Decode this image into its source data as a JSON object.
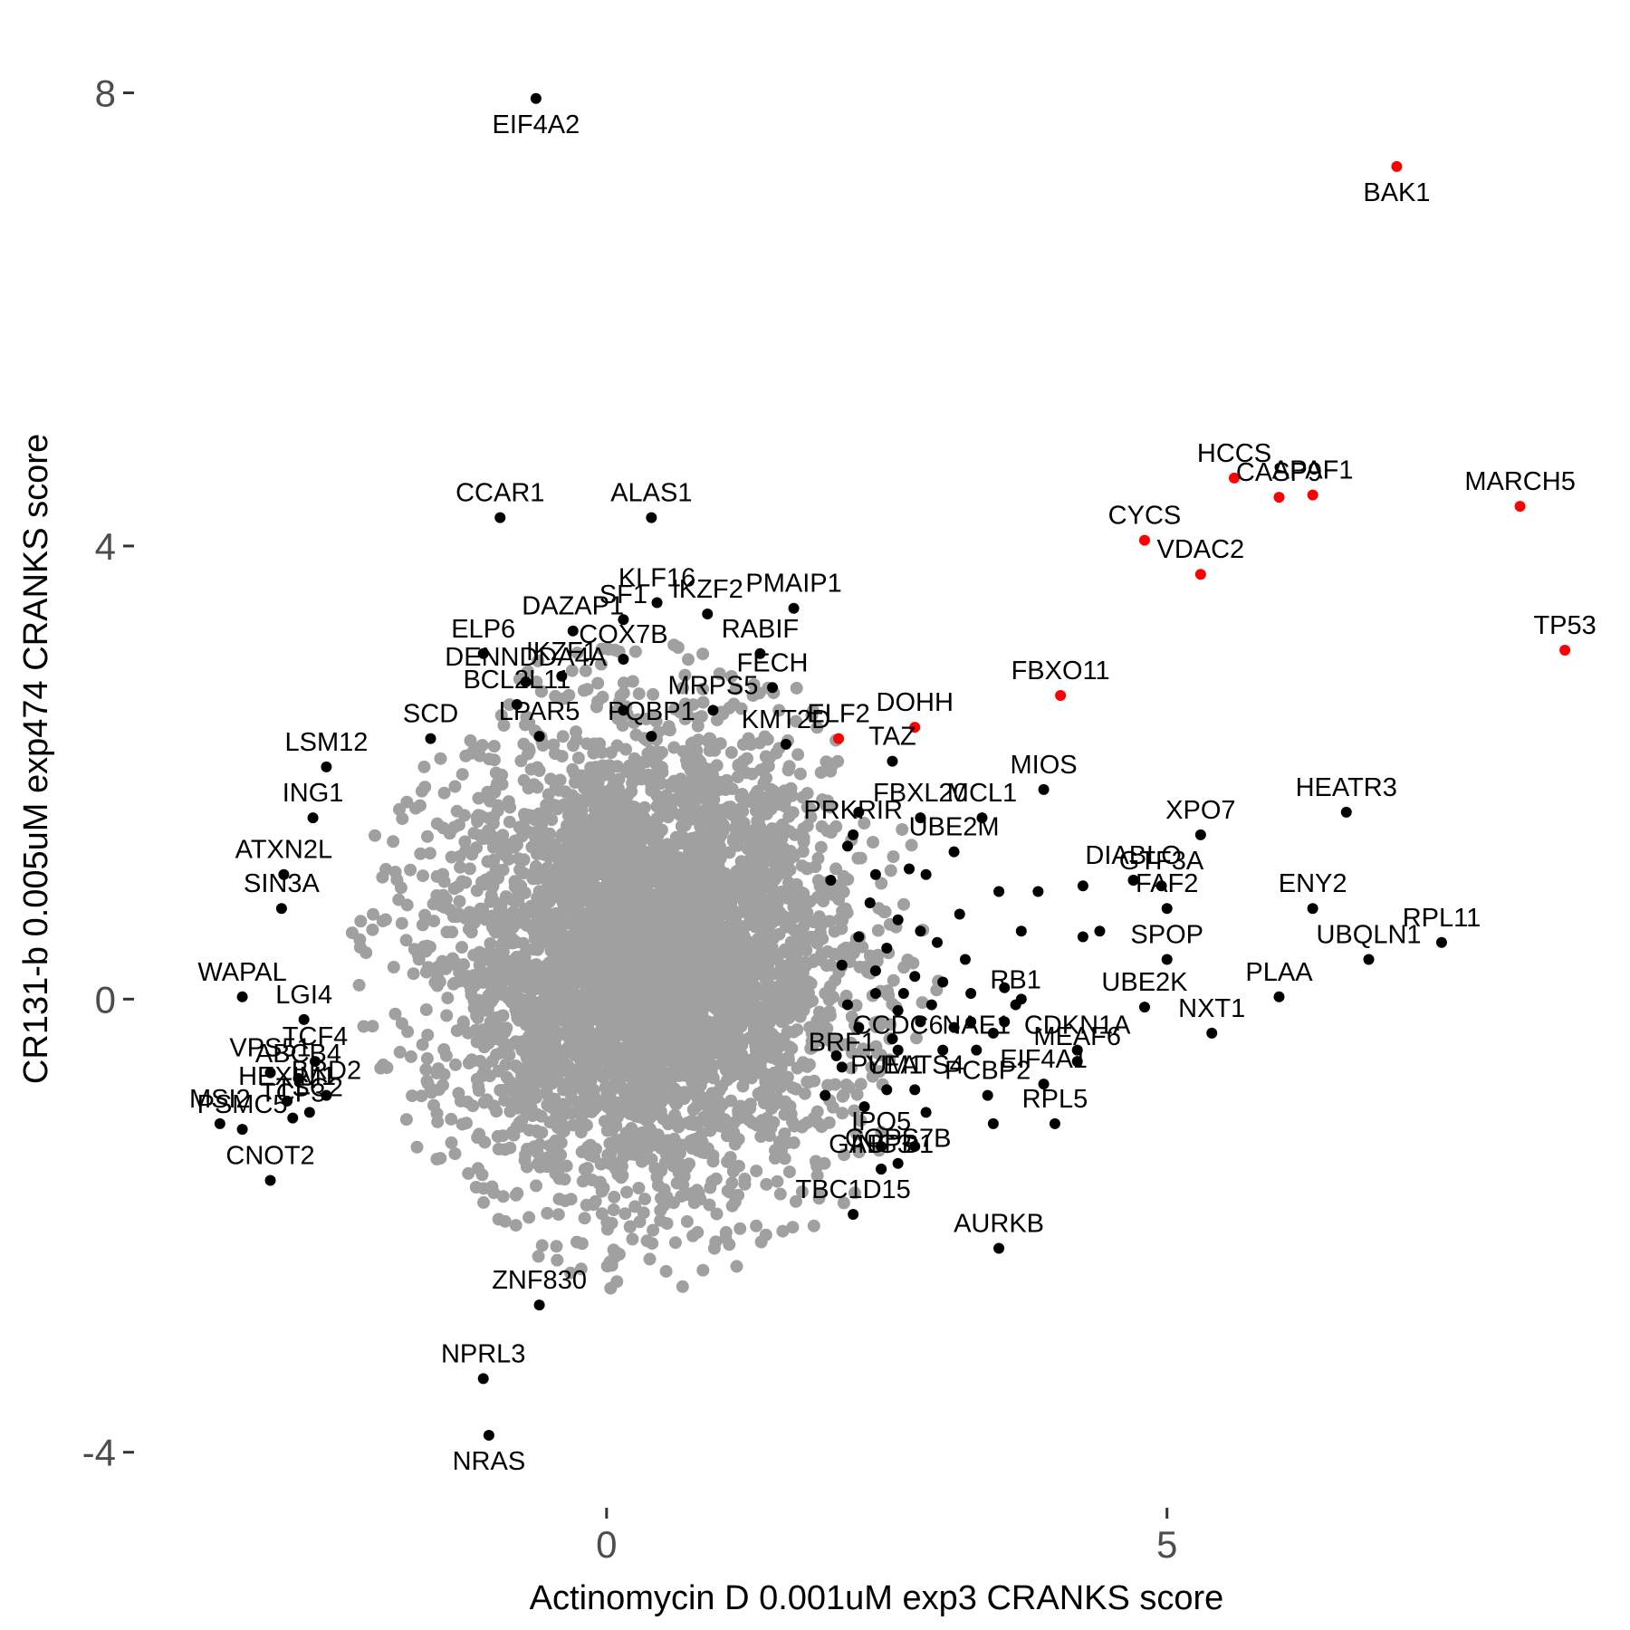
{
  "chart_data": {
    "type": "scatter",
    "title": "",
    "xlabel": "Actinomycin D 0.001uM exp3 CRANKS score",
    "ylabel": "CR131-b 0.005uM exp474 CRANKS score",
    "xlim": [
      -4.2,
      9.05
    ],
    "ylim": [
      -4.45,
      8.3
    ],
    "x_ticks": [
      0,
      5
    ],
    "y_ticks": [
      -4,
      0,
      4,
      8
    ],
    "grid": false,
    "legend": "none",
    "colors": {
      "background": "#ffffff",
      "bulk": "#a0a0a0",
      "highlight": "#ff0000",
      "labeled": "#000000",
      "text": "#000000",
      "tick_text": "#4d4d4d"
    },
    "bulk_cloud": {
      "center_x": 0.35,
      "center_y": 0.35,
      "sd_x": 0.85,
      "sd_y": 0.95,
      "count": 4500
    },
    "highlighted": [
      {
        "label": "BAK1",
        "x": 7.05,
        "y": 7.35
      },
      {
        "label": "HCCS",
        "x": 5.6,
        "y": 4.6
      },
      {
        "label": "APAF1",
        "x": 6.3,
        "y": 4.45
      },
      {
        "label": "CASP9",
        "x": 6.0,
        "y": 4.43
      },
      {
        "label": "CYCS",
        "x": 4.8,
        "y": 4.05
      },
      {
        "label": "MARCH5",
        "x": 8.15,
        "y": 4.35
      },
      {
        "label": "VDAC2",
        "x": 5.3,
        "y": 3.75
      },
      {
        "label": "TP53",
        "x": 8.55,
        "y": 3.08
      },
      {
        "label": "FBXO11",
        "x": 4.05,
        "y": 2.68
      },
      {
        "label": "DOHH",
        "x": 2.75,
        "y": 2.4
      },
      {
        "label": "ELF2",
        "x": 2.07,
        "y": 2.3
      }
    ],
    "labeled": [
      {
        "label": "EIF4A2",
        "x": -0.63,
        "y": 7.95
      },
      {
        "label": "CCAR1",
        "x": -0.95,
        "y": 4.25
      },
      {
        "label": "ALAS1",
        "x": 0.4,
        "y": 4.25
      },
      {
        "label": "DAZAP1",
        "x": -0.3,
        "y": 3.25
      },
      {
        "label": "KLF16",
        "x": 0.45,
        "y": 3.5
      },
      {
        "label": "SF1",
        "x": 0.15,
        "y": 3.35
      },
      {
        "label": "IKZF2",
        "x": 0.9,
        "y": 3.4
      },
      {
        "label": "PMAIP1",
        "x": 1.67,
        "y": 3.45
      },
      {
        "label": "ELP6",
        "x": -1.1,
        "y": 3.05
      },
      {
        "label": "DENNDDA4A",
        "x": -0.72,
        "y": 2.8
      },
      {
        "label": "COX7B",
        "x": 0.15,
        "y": 3.0
      },
      {
        "label": "RABIF",
        "x": 1.37,
        "y": 3.05
      },
      {
        "label": "BCL2L11",
        "x": -0.8,
        "y": 2.6
      },
      {
        "label": "IKZF1",
        "x": -0.4,
        "y": 2.85
      },
      {
        "label": "FECH",
        "x": 1.48,
        "y": 2.75
      },
      {
        "label": "SCD",
        "x": -1.57,
        "y": 2.3
      },
      {
        "label": "MRPS5",
        "x": 0.95,
        "y": 2.55
      },
      {
        "label": "LPAR5",
        "x": -0.6,
        "y": 2.32
      },
      {
        "label": "LSM12",
        "x": -2.5,
        "y": 2.05
      },
      {
        "label": "PQBP1",
        "x": 0.4,
        "y": 2.32
      },
      {
        "label": "TAZ",
        "x": 2.55,
        "y": 2.1
      },
      {
        "label": "ING1",
        "x": -2.62,
        "y": 1.6
      },
      {
        "label": "KMT2D",
        "x": 1.6,
        "y": 2.25
      },
      {
        "label": "FBXL20",
        "x": 2.8,
        "y": 1.6
      },
      {
        "label": "MIOS",
        "x": 3.9,
        "y": 1.85
      },
      {
        "label": "MCL1",
        "x": 3.35,
        "y": 1.6
      },
      {
        "label": "XPO7",
        "x": 5.3,
        "y": 1.45
      },
      {
        "label": "HEATR3",
        "x": 6.6,
        "y": 1.65
      },
      {
        "label": "ATXN2L",
        "x": -2.88,
        "y": 1.1
      },
      {
        "label": "PRKRIR",
        "x": 2.2,
        "y": 1.45
      },
      {
        "label": "UBE2M",
        "x": 3.1,
        "y": 1.3
      },
      {
        "label": "GTF3A",
        "x": 4.95,
        "y": 1.0
      },
      {
        "label": "DIABLO",
        "x": 4.7,
        "y": 1.05
      },
      {
        "label": "FAF2",
        "x": 5.0,
        "y": 0.8
      },
      {
        "label": "ENY2",
        "x": 6.3,
        "y": 0.8
      },
      {
        "label": "SIN3A",
        "x": -2.9,
        "y": 0.8
      },
      {
        "label": "RPL11",
        "x": 7.45,
        "y": 0.5
      },
      {
        "label": "SPOP",
        "x": 5.0,
        "y": 0.35
      },
      {
        "label": "UBQLN1",
        "x": 6.8,
        "y": 0.35
      },
      {
        "label": "WAPAL",
        "x": -3.25,
        "y": 0.02
      },
      {
        "label": "UBE2K",
        "x": 4.8,
        "y": -0.07
      },
      {
        "label": "PLAA",
        "x": 6.0,
        "y": 0.02
      },
      {
        "label": "LGI4",
        "x": -2.7,
        "y": -0.18
      },
      {
        "label": "RB1",
        "x": 3.65,
        "y": -0.05
      },
      {
        "label": "NXT1",
        "x": 5.4,
        "y": -0.3
      },
      {
        "label": "TCF4",
        "x": -2.6,
        "y": -0.55
      },
      {
        "label": "VPS51",
        "x": -3.0,
        "y": -0.65
      },
      {
        "label": "ABCB4",
        "x": -2.75,
        "y": -0.7
      },
      {
        "label": "MEAF6",
        "x": 4.2,
        "y": -0.55
      },
      {
        "label": "NAE1",
        "x": 3.3,
        "y": -0.45
      },
      {
        "label": "CCDC6",
        "x": 2.6,
        "y": -0.45
      },
      {
        "label": "BRF1",
        "x": 2.1,
        "y": -0.6
      },
      {
        "label": "MSI2",
        "x": -3.45,
        "y": -1.1
      },
      {
        "label": "BRD2",
        "x": -2.5,
        "y": -0.85
      },
      {
        "label": "HEXIM1",
        "x": -2.85,
        "y": -0.9
      },
      {
        "label": "PCBP2",
        "x": 3.4,
        "y": -0.85
      },
      {
        "label": "EIF4A1",
        "x": 3.9,
        "y": -0.75
      },
      {
        "label": "CDKN1A",
        "x": 4.2,
        "y": -0.45
      },
      {
        "label": "PUM1",
        "x": 2.5,
        "y": -0.8
      },
      {
        "label": "TSC2",
        "x": -2.65,
        "y": -1.0
      },
      {
        "label": "TCF3",
        "x": -2.8,
        "y": -1.05
      },
      {
        "label": "RPL5",
        "x": 4.0,
        "y": -1.1
      },
      {
        "label": "IPO5",
        "x": 2.45,
        "y": -1.3
      },
      {
        "label": "COPS7B",
        "x": 2.6,
        "y": -1.45
      },
      {
        "label": "YEATS4",
        "x": 2.75,
        "y": -0.8
      },
      {
        "label": "PSMC5",
        "x": -3.25,
        "y": -1.15
      },
      {
        "label": "CNOT2",
        "x": -3.0,
        "y": -1.6
      },
      {
        "label": "ING3",
        "x": 2.45,
        "y": -1.5
      },
      {
        "label": "GABPB1",
        "x": 2.45,
        "y": -1.5
      },
      {
        "label": "TBC1D15",
        "x": 2.2,
        "y": -1.9
      },
      {
        "label": "AURKB",
        "x": 3.5,
        "y": -2.2
      },
      {
        "label": "ZNF830",
        "x": -0.6,
        "y": -2.7
      },
      {
        "label": "NPRL3",
        "x": -1.1,
        "y": -3.35
      },
      {
        "label": "NRAS",
        "x": -1.05,
        "y": -3.85
      }
    ],
    "unlabeled_black": [
      {
        "x": 0.15,
        "y": 2.55
      },
      {
        "x": 2.25,
        "y": 1.65
      },
      {
        "x": 2.15,
        "y": 1.35
      },
      {
        "x": 2.4,
        "y": 1.1
      },
      {
        "x": 2.7,
        "y": 1.15
      },
      {
        "x": 2.85,
        "y": 1.1
      },
      {
        "x": 3.5,
        "y": 0.95
      },
      {
        "x": 3.85,
        "y": 0.95
      },
      {
        "x": 4.25,
        "y": 1.0
      },
      {
        "x": 4.7,
        "y": 1.05
      },
      {
        "x": 2.0,
        "y": 1.05
      },
      {
        "x": 2.35,
        "y": 0.85
      },
      {
        "x": 2.6,
        "y": 0.7
      },
      {
        "x": 2.8,
        "y": 0.6
      },
      {
        "x": 3.15,
        "y": 0.75
      },
      {
        "x": 3.7,
        "y": 0.6
      },
      {
        "x": 2.25,
        "y": 0.55
      },
      {
        "x": 2.5,
        "y": 0.45
      },
      {
        "x": 2.95,
        "y": 0.5
      },
      {
        "x": 3.2,
        "y": 0.35
      },
      {
        "x": 4.25,
        "y": 0.55
      },
      {
        "x": 4.4,
        "y": 0.6
      },
      {
        "x": 2.1,
        "y": 0.3
      },
      {
        "x": 2.4,
        "y": 0.25
      },
      {
        "x": 2.75,
        "y": 0.2
      },
      {
        "x": 3.0,
        "y": 0.15
      },
      {
        "x": 3.25,
        "y": 0.05
      },
      {
        "x": 3.55,
        "y": 0.1
      },
      {
        "x": 2.15,
        "y": -0.05
      },
      {
        "x": 2.4,
        "y": 0.05
      },
      {
        "x": 2.6,
        "y": -0.1
      },
      {
        "x": 2.9,
        "y": -0.05
      },
      {
        "x": 3.25,
        "y": -0.2
      },
      {
        "x": 3.7,
        "y": -0.0
      },
      {
        "x": 2.25,
        "y": -0.25
      },
      {
        "x": 2.55,
        "y": -0.35
      },
      {
        "x": 3.0,
        "y": -0.45
      },
      {
        "x": 3.45,
        "y": -0.3
      },
      {
        "x": 2.05,
        "y": -0.5
      },
      {
        "x": 2.8,
        "y": -0.2
      },
      {
        "x": 1.95,
        "y": -0.85
      },
      {
        "x": 2.3,
        "y": -0.95
      },
      {
        "x": 2.85,
        "y": -1.0
      },
      {
        "x": 3.45,
        "y": -1.1
      },
      {
        "x": 2.75,
        "y": -1.3
      },
      {
        "x": 3.1,
        "y": -0.25
      },
      {
        "x": 3.55,
        "y": -0.2
      },
      {
        "x": 2.65,
        "y": 0.05
      }
    ]
  }
}
